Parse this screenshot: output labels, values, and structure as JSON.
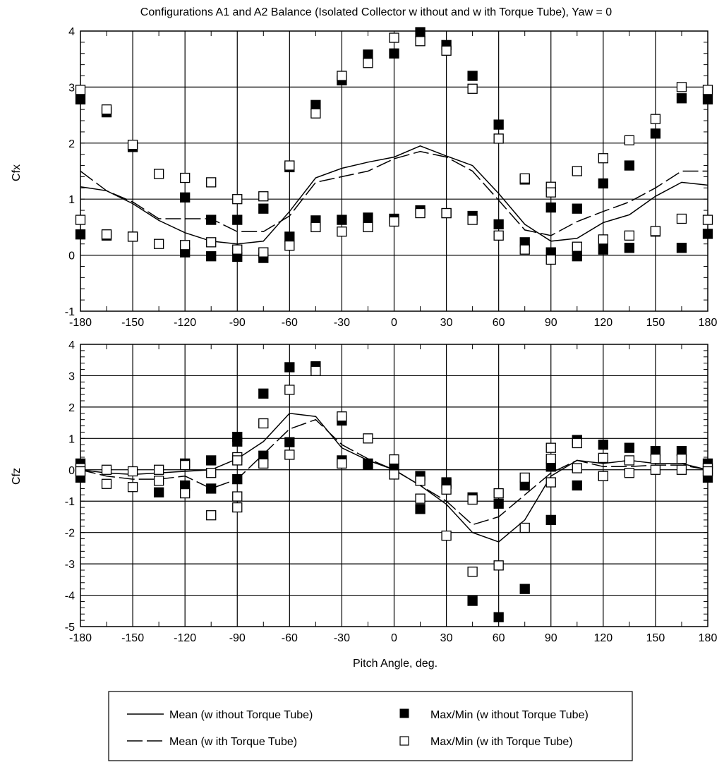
{
  "title": "Configurations A1 and A2 Balance (Isolated Collector w ithout and w ith Torque Tube), Yaw = 0",
  "xlabel": "Pitch Angle, deg.",
  "legend": {
    "mean_without": "Mean (w ithout Torque Tube)",
    "mean_with": "Mean (w ith Torque Tube)",
    "maxmin_without": "Max/Min (w ithout Torque Tube)",
    "maxmin_with": "Max/Min (w ith Torque Tube)"
  },
  "colors": {
    "ink": "#000000",
    "background": "#ffffff"
  },
  "chart_data": [
    {
      "type": "line",
      "title": "Configurations A1 and A2 Balance (Isolated Collector w ithout and w ith Torque Tube), Yaw = 0",
      "ylabel": "Cfx",
      "xlim": [
        -180,
        180
      ],
      "ylim": [
        -1,
        4
      ],
      "xticks": [
        -180,
        -150,
        -120,
        -90,
        -60,
        -30,
        0,
        30,
        60,
        90,
        120,
        150,
        180
      ],
      "yticks": [
        -1,
        0,
        1,
        2,
        3,
        4
      ],
      "grid": true,
      "series": [
        {
          "name": "Mean (w ithout Torque Tube)",
          "style": "solid",
          "x": [
            -180,
            -165,
            -150,
            -135,
            -120,
            -105,
            -90,
            -75,
            -60,
            -45,
            -30,
            -15,
            0,
            15,
            30,
            45,
            60,
            75,
            90,
            105,
            120,
            135,
            150,
            165,
            180
          ],
          "y": [
            1.22,
            1.15,
            0.92,
            0.62,
            0.4,
            0.25,
            0.2,
            0.25,
            0.78,
            1.38,
            1.55,
            1.66,
            1.75,
            1.95,
            1.77,
            1.6,
            1.1,
            0.55,
            0.25,
            0.3,
            0.58,
            0.72,
            1.05,
            1.3,
            1.25
          ]
        },
        {
          "name": "Mean (w ith Torque Tube)",
          "style": "dashed",
          "x": [
            -180,
            -165,
            -150,
            -135,
            -120,
            -105,
            -90,
            -75,
            -60,
            -45,
            -30,
            -15,
            0,
            15,
            30,
            45,
            60,
            75,
            90,
            105,
            120,
            135,
            150,
            165,
            180
          ],
          "y": [
            1.5,
            1.15,
            0.95,
            0.65,
            0.65,
            0.65,
            0.42,
            0.42,
            0.7,
            1.3,
            1.4,
            1.5,
            1.72,
            1.85,
            1.75,
            1.5,
            0.98,
            0.45,
            0.35,
            0.6,
            0.78,
            0.95,
            1.2,
            1.5,
            1.5
          ]
        },
        {
          "name": "Max/Min (w ithout Torque Tube)",
          "marker": "filled-square",
          "x": [
            -180,
            -165,
            -150,
            -120,
            -105,
            -90,
            -75,
            -60,
            -45,
            -30,
            -15,
            0,
            15,
            30,
            45,
            60,
            75,
            90,
            105,
            120,
            135,
            150,
            165,
            180,
            -180,
            -165,
            -150,
            -120,
            -105,
            -90,
            -75,
            -60,
            -45,
            -30,
            -15,
            0,
            15,
            30,
            45,
            60,
            75,
            90,
            105,
            120,
            135,
            150,
            165,
            180
          ],
          "y": [
            2.78,
            2.55,
            1.93,
            1.03,
            0.63,
            0.63,
            0.83,
            1.57,
            2.68,
            3.12,
            3.58,
            3.6,
            3.98,
            3.75,
            3.2,
            2.33,
            1.35,
            0.85,
            0.83,
            1.28,
            1.6,
            2.17,
            2.8,
            2.78,
            0.37,
            0.35,
            0.33,
            0.05,
            -0.02,
            -0.03,
            -0.05,
            0.33,
            0.62,
            0.63,
            0.67,
            0.65,
            0.8,
            0.75,
            0.7,
            0.55,
            0.23,
            0.05,
            -0.02,
            0.1,
            0.13,
            0.42,
            0.13,
            0.38
          ]
        },
        {
          "name": "Max/Min (w ith Torque Tube)",
          "marker": "open-square",
          "x": [
            -180,
            -165,
            -150,
            -135,
            -120,
            -105,
            -90,
            -75,
            -60,
            -45,
            -30,
            -15,
            0,
            15,
            30,
            45,
            60,
            75,
            90,
            105,
            120,
            135,
            150,
            165,
            180,
            -180,
            -165,
            -150,
            -135,
            -120,
            -105,
            -90,
            -75,
            -60,
            -45,
            -30,
            -15,
            0,
            15,
            30,
            45,
            60,
            75,
            90,
            90,
            105,
            120,
            135,
            150,
            165,
            180
          ],
          "y": [
            2.95,
            2.6,
            1.97,
            1.45,
            1.38,
            1.3,
            1.0,
            1.05,
            1.6,
            2.53,
            3.2,
            3.43,
            3.88,
            3.82,
            3.65,
            2.97,
            2.08,
            1.37,
            1.22,
            1.5,
            1.73,
            2.05,
            2.43,
            3.0,
            2.95,
            0.63,
            0.37,
            0.33,
            0.2,
            0.18,
            0.23,
            0.1,
            0.05,
            0.17,
            0.5,
            0.42,
            0.5,
            0.6,
            0.75,
            0.75,
            0.63,
            0.35,
            0.1,
            1.12,
            -0.08,
            0.15,
            0.28,
            0.35,
            0.43,
            0.65,
            0.63
          ]
        }
      ]
    },
    {
      "type": "line",
      "ylabel": "Cfz",
      "xlabel": "Pitch Angle, deg.",
      "xlim": [
        -180,
        180
      ],
      "ylim": [
        -5,
        4
      ],
      "xticks": [
        -180,
        -150,
        -120,
        -90,
        -60,
        -30,
        0,
        30,
        60,
        90,
        120,
        150,
        180
      ],
      "yticks": [
        -5,
        -4,
        -3,
        -2,
        -1,
        0,
        1,
        2,
        3,
        4
      ],
      "grid": true,
      "series": [
        {
          "name": "Mean (w ithout Torque Tube)",
          "style": "solid",
          "x": [
            -180,
            -165,
            -150,
            -135,
            -120,
            -105,
            -90,
            -75,
            -60,
            -45,
            -30,
            -15,
            0,
            15,
            30,
            45,
            60,
            75,
            90,
            105,
            120,
            135,
            150,
            165,
            180
          ],
          "y": [
            0.0,
            -0.1,
            -0.15,
            -0.1,
            -0.05,
            0.0,
            0.35,
            0.9,
            1.8,
            1.7,
            0.7,
            0.3,
            0.0,
            -0.5,
            -1.1,
            -2.0,
            -2.3,
            -1.6,
            -0.2,
            0.3,
            0.2,
            0.3,
            0.2,
            0.2,
            0.0
          ]
        },
        {
          "name": "Mean (w ith Torque Tube)",
          "style": "dashed",
          "x": [
            -180,
            -165,
            -150,
            -135,
            -120,
            -105,
            -90,
            -75,
            -60,
            -45,
            -30,
            -15,
            0,
            15,
            30,
            45,
            60,
            75,
            90,
            105,
            120,
            135,
            150,
            165,
            180
          ],
          "y": [
            0.0,
            -0.2,
            -0.3,
            -0.3,
            -0.2,
            -0.6,
            -0.3,
            0.5,
            1.3,
            1.6,
            0.8,
            0.35,
            0.0,
            -0.5,
            -1.0,
            -1.75,
            -1.5,
            -0.8,
            -0.1,
            0.3,
            0.1,
            0.1,
            0.15,
            0.15,
            0.0
          ]
        },
        {
          "name": "Max/Min (w ithout Torque Tube)",
          "marker": "filled-square",
          "x": [
            -180,
            -120,
            -105,
            -90,
            -90,
            -75,
            -60,
            -45,
            -30,
            -15,
            0,
            15,
            30,
            45,
            60,
            75,
            90,
            105,
            120,
            135,
            150,
            165,
            180,
            -180,
            -135,
            -120,
            -105,
            -90,
            -75,
            -60,
            -45,
            -30,
            -15,
            15,
            30,
            45,
            60,
            75,
            90,
            105,
            120,
            180
          ],
          "y": [
            0.2,
            0.2,
            0.3,
            1.05,
            0.9,
            2.43,
            3.27,
            3.27,
            1.57,
            0.17,
            0.05,
            -0.2,
            -0.45,
            -0.88,
            -1.08,
            -0.5,
            0.1,
            0.95,
            0.8,
            0.7,
            0.6,
            0.6,
            0.2,
            -0.25,
            -0.72,
            -0.5,
            -0.6,
            -0.3,
            0.45,
            0.88,
            3.3,
            0.3,
            0.2,
            -1.25,
            -0.4,
            -4.18,
            -4.7,
            -3.8,
            -1.6,
            -0.5,
            -0.2,
            -0.25
          ]
        },
        {
          "name": "Max/Min (w ith Torque Tube)",
          "marker": "open-square",
          "x": [
            -180,
            -165,
            -150,
            -135,
            -120,
            -105,
            -90,
            -90,
            -75,
            -60,
            -45,
            -30,
            -15,
            0,
            15,
            30,
            45,
            60,
            75,
            90,
            90,
            105,
            120,
            135,
            150,
            165,
            180,
            -180,
            -165,
            -150,
            -135,
            -120,
            -105,
            -90,
            -90,
            -75,
            -60,
            -30,
            0,
            15,
            30,
            45,
            60,
            75,
            90,
            105,
            120,
            135,
            150,
            165,
            180
          ],
          "y": [
            0.05,
            0.0,
            -0.05,
            0.0,
            0.15,
            -0.1,
            0.4,
            0.3,
            1.48,
            2.55,
            3.15,
            1.7,
            1.0,
            0.33,
            -0.35,
            -0.63,
            -0.95,
            -0.75,
            -0.25,
            0.7,
            0.35,
            0.85,
            0.38,
            0.3,
            0.35,
            0.35,
            0.05,
            -0.05,
            -0.45,
            -0.55,
            -0.35,
            -0.75,
            -1.45,
            -1.2,
            -0.85,
            0.2,
            0.48,
            0.2,
            -0.15,
            -0.92,
            -2.1,
            -3.25,
            -3.05,
            -1.85,
            -0.4,
            0.05,
            -0.2,
            -0.1,
            0.0,
            0.0,
            -0.05
          ]
        }
      ]
    }
  ]
}
